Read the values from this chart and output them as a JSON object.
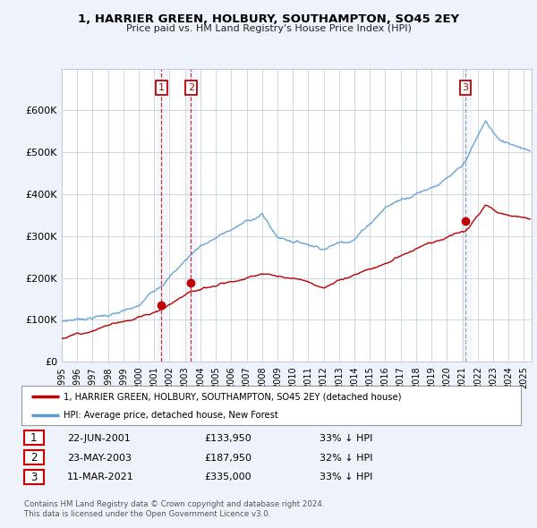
{
  "title": "1, HARRIER GREEN, HOLBURY, SOUTHAMPTON, SO45 2EY",
  "subtitle": "Price paid vs. HM Land Registry's House Price Index (HPI)",
  "legend_line1": "1, HARRIER GREEN, HOLBURY, SOUTHAMPTON, SO45 2EY (detached house)",
  "legend_line2": "HPI: Average price, detached house, New Forest",
  "footer1": "Contains HM Land Registry data © Crown copyright and database right 2024.",
  "footer2": "This data is licensed under the Open Government Licence v3.0.",
  "transactions": [
    {
      "num": 1,
      "date": "22-JUN-2001",
      "price": 133950,
      "pct": "33% ↓ HPI",
      "x": 2001.47
    },
    {
      "num": 2,
      "date": "23-MAY-2003",
      "price": 187950,
      "pct": "32% ↓ HPI",
      "x": 2003.39
    },
    {
      "num": 3,
      "date": "11-MAR-2021",
      "price": 335000,
      "pct": "33% ↓ HPI",
      "x": 2021.19
    }
  ],
  "hpi_color": "#5b9bd5",
  "price_color": "#c00000",
  "background_color": "#eef2fa",
  "plot_bg": "#ffffff",
  "ylim": [
    0,
    700000
  ],
  "xlim_start": 1995.0,
  "xlim_end": 2025.5,
  "yticks": [
    0,
    100000,
    200000,
    300000,
    400000,
    500000,
    600000
  ],
  "xticks": [
    1995,
    1996,
    1997,
    1998,
    1999,
    2000,
    2001,
    2002,
    2003,
    2004,
    2005,
    2006,
    2007,
    2008,
    2009,
    2010,
    2011,
    2012,
    2013,
    2014,
    2015,
    2016,
    2017,
    2018,
    2019,
    2020,
    2021,
    2022,
    2023,
    2024,
    2025
  ]
}
